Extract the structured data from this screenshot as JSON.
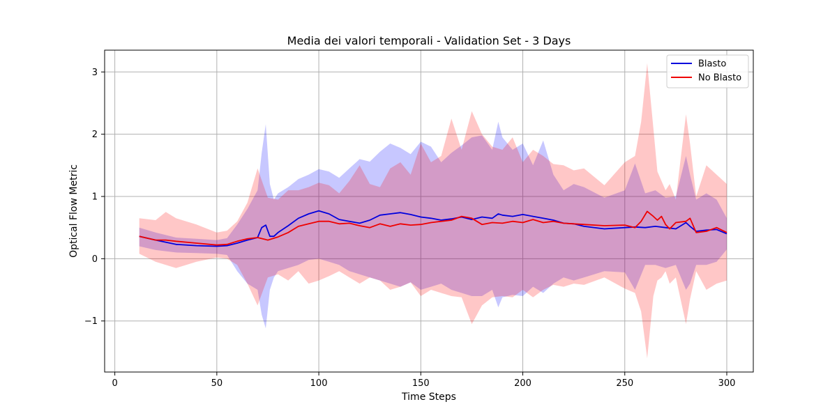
{
  "chart_data": {
    "type": "line",
    "title": "Media dei valori temporali - Validation Set - 3 Days",
    "xlabel": "Time Steps",
    "ylabel": "Optical Flow Metric",
    "xlim": [
      -5,
      313
    ],
    "ylim": [
      -1.82,
      3.35
    ],
    "xticks": [
      0,
      50,
      100,
      150,
      200,
      250,
      300
    ],
    "xtick_labels": [
      "0",
      "50",
      "100",
      "150",
      "200",
      "250",
      "300"
    ],
    "yticks": [
      -1,
      0,
      1,
      2,
      3
    ],
    "ytick_labels": [
      "−1",
      "0",
      "1",
      "2",
      "3"
    ],
    "grid": true,
    "legend_position": "top-right",
    "series": [
      {
        "name": "Blasto",
        "color": "#0000dd",
        "band_color": "#0000ff",
        "x": [
          12,
          20,
          30,
          40,
          50,
          55,
          60,
          65,
          70,
          72,
          74,
          76,
          78,
          80,
          85,
          90,
          95,
          100,
          105,
          110,
          115,
          120,
          125,
          130,
          135,
          140,
          145,
          150,
          155,
          160,
          165,
          170,
          175,
          180,
          185,
          188,
          190,
          195,
          200,
          205,
          210,
          215,
          220,
          225,
          230,
          240,
          250,
          255,
          260,
          265,
          270,
          275,
          280,
          282,
          285,
          290,
          295,
          300
        ],
        "mean": [
          0.36,
          0.3,
          0.23,
          0.21,
          0.2,
          0.21,
          0.25,
          0.3,
          0.34,
          0.5,
          0.54,
          0.36,
          0.36,
          0.42,
          0.53,
          0.65,
          0.72,
          0.77,
          0.72,
          0.63,
          0.6,
          0.57,
          0.62,
          0.7,
          0.72,
          0.74,
          0.71,
          0.67,
          0.65,
          0.62,
          0.64,
          0.67,
          0.63,
          0.67,
          0.65,
          0.72,
          0.7,
          0.68,
          0.71,
          0.68,
          0.65,
          0.62,
          0.57,
          0.56,
          0.52,
          0.48,
          0.5,
          0.51,
          0.5,
          0.52,
          0.5,
          0.48,
          0.58,
          0.52,
          0.44,
          0.46,
          0.47,
          0.4
        ],
        "upper": [
          0.5,
          0.42,
          0.34,
          0.32,
          0.3,
          0.33,
          0.55,
          0.8,
          1.1,
          1.7,
          2.16,
          1.2,
          0.95,
          1.05,
          1.15,
          1.28,
          1.35,
          1.44,
          1.4,
          1.3,
          1.45,
          1.6,
          1.56,
          1.72,
          1.85,
          1.78,
          1.68,
          1.88,
          1.8,
          1.55,
          1.7,
          1.82,
          1.95,
          1.98,
          1.75,
          2.2,
          1.95,
          1.75,
          1.85,
          1.5,
          1.9,
          1.35,
          1.1,
          1.2,
          1.15,
          0.98,
          1.1,
          1.53,
          1.05,
          1.1,
          0.98,
          1.0,
          1.65,
          1.35,
          0.95,
          1.05,
          0.95,
          0.65
        ],
        "lower": [
          0.2,
          0.14,
          0.1,
          0.09,
          0.08,
          0.06,
          -0.2,
          -0.4,
          -0.5,
          -0.9,
          -1.12,
          -0.5,
          -0.3,
          -0.2,
          -0.15,
          -0.1,
          -0.02,
          0.0,
          -0.05,
          -0.1,
          -0.2,
          -0.25,
          -0.3,
          -0.35,
          -0.4,
          -0.45,
          -0.38,
          -0.5,
          -0.45,
          -0.4,
          -0.5,
          -0.55,
          -0.6,
          -0.6,
          -0.5,
          -0.78,
          -0.62,
          -0.58,
          -0.6,
          -0.45,
          -0.55,
          -0.4,
          -0.3,
          -0.35,
          -0.3,
          -0.2,
          -0.22,
          -0.5,
          -0.1,
          -0.1,
          -0.15,
          -0.1,
          -0.5,
          -0.4,
          -0.1,
          -0.1,
          -0.05,
          0.15
        ]
      },
      {
        "name": "No Blasto",
        "color": "#ee0000",
        "band_color": "#ff0000",
        "x": [
          12,
          20,
          25,
          30,
          40,
          50,
          55,
          60,
          65,
          70,
          75,
          80,
          85,
          90,
          95,
          100,
          105,
          110,
          115,
          120,
          125,
          130,
          135,
          140,
          145,
          150,
          155,
          160,
          165,
          170,
          175,
          180,
          185,
          190,
          195,
          200,
          205,
          210,
          215,
          220,
          225,
          230,
          240,
          250,
          255,
          258,
          261,
          264,
          266,
          268,
          270,
          272,
          275,
          280,
          282,
          285,
          290,
          295,
          300
        ],
        "mean": [
          0.36,
          0.3,
          0.3,
          0.28,
          0.25,
          0.22,
          0.23,
          0.28,
          0.32,
          0.34,
          0.3,
          0.35,
          0.42,
          0.52,
          0.56,
          0.6,
          0.6,
          0.56,
          0.57,
          0.53,
          0.5,
          0.56,
          0.52,
          0.56,
          0.54,
          0.55,
          0.58,
          0.6,
          0.62,
          0.68,
          0.65,
          0.55,
          0.58,
          0.57,
          0.6,
          0.58,
          0.63,
          0.58,
          0.6,
          0.57,
          0.56,
          0.55,
          0.53,
          0.54,
          0.5,
          0.6,
          0.76,
          0.68,
          0.62,
          0.68,
          0.55,
          0.48,
          0.58,
          0.6,
          0.65,
          0.42,
          0.44,
          0.5,
          0.42
        ],
        "upper": [
          0.65,
          0.62,
          0.75,
          0.65,
          0.55,
          0.42,
          0.45,
          0.6,
          0.9,
          1.45,
          0.98,
          0.95,
          1.1,
          1.1,
          1.15,
          1.22,
          1.18,
          1.05,
          1.25,
          1.5,
          1.2,
          1.15,
          1.45,
          1.55,
          1.35,
          1.85,
          1.55,
          1.65,
          2.25,
          1.75,
          2.37,
          2.0,
          1.8,
          1.75,
          1.95,
          1.55,
          1.75,
          1.65,
          1.52,
          1.5,
          1.42,
          1.45,
          1.18,
          1.55,
          1.65,
          2.2,
          3.14,
          2.1,
          1.4,
          1.25,
          1.1,
          1.2,
          0.95,
          2.32,
          1.85,
          1.0,
          1.5,
          1.35,
          1.2
        ],
        "lower": [
          0.08,
          -0.05,
          -0.1,
          -0.15,
          -0.05,
          0.02,
          0.0,
          -0.1,
          -0.4,
          -0.75,
          -0.3,
          -0.25,
          -0.35,
          -0.2,
          -0.4,
          -0.35,
          -0.28,
          -0.2,
          -0.3,
          -0.4,
          -0.3,
          -0.35,
          -0.5,
          -0.45,
          -0.38,
          -0.6,
          -0.5,
          -0.55,
          -0.6,
          -0.62,
          -1.05,
          -0.75,
          -0.62,
          -0.6,
          -0.62,
          -0.5,
          -0.62,
          -0.5,
          -0.42,
          -0.45,
          -0.4,
          -0.42,
          -0.3,
          -0.48,
          -0.55,
          -0.85,
          -1.6,
          -0.6,
          -0.35,
          -0.3,
          -0.2,
          -0.4,
          -0.3,
          -1.05,
          -0.65,
          -0.2,
          -0.5,
          -0.4,
          -0.35
        ]
      }
    ]
  }
}
